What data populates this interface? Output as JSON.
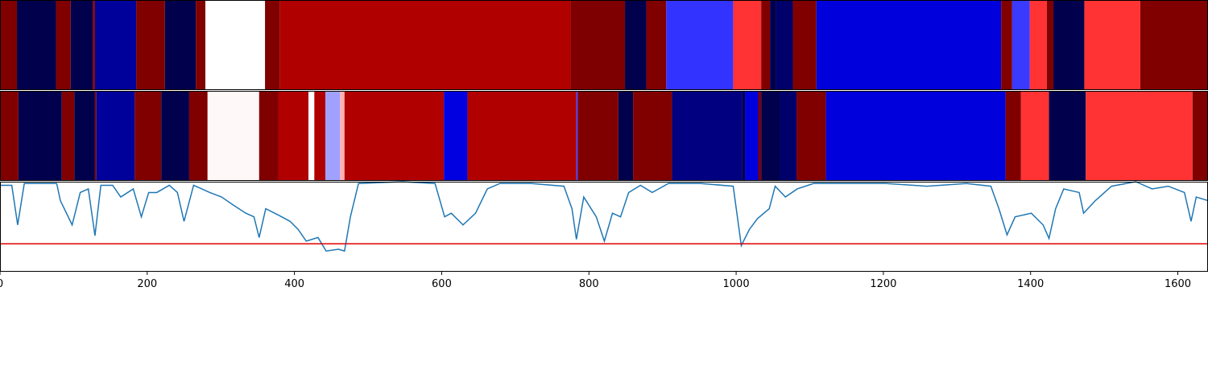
{
  "chart_data": [
    {
      "type": "segments",
      "edges": [
        0,
        23,
        76,
        96,
        126,
        129,
        185,
        224,
        266,
        279,
        360,
        380,
        775,
        849,
        878,
        905,
        996,
        1034,
        1046,
        1054,
        1077,
        1109,
        1360,
        1375,
        1399,
        1422,
        1431,
        1473,
        1549,
        1641
      ],
      "colors": [
        "#800000",
        "#00004c",
        "#800000",
        "#00004c",
        "#800000",
        "#00009a",
        "#800000",
        "#00004c",
        "#800000",
        "#ffffff",
        "#800000",
        "#b00000",
        "#7f0000",
        "#00004c",
        "#800000",
        "#3333ff",
        "#ff3333",
        "#800000",
        "#00004c",
        "#00006a",
        "#800000",
        "#0000dd",
        "#800000",
        "#3a3aff",
        "#ff3333",
        "#800000",
        "#00004c",
        "#ff3333",
        "#800000"
      ],
      "xlim": [
        0,
        1641
      ]
    },
    {
      "type": "segments",
      "edges": [
        0,
        25,
        84,
        101,
        129,
        131,
        183,
        219,
        257,
        282,
        352,
        378,
        419,
        427,
        442,
        462,
        468,
        603,
        635,
        783,
        785,
        840,
        860,
        913,
        1008,
        1012,
        1030,
        1034,
        1059,
        1082,
        1122,
        1366,
        1387,
        1425,
        1475,
        1620,
        1641
      ],
      "colors": [
        "#800000",
        "#00004c",
        "#800000",
        "#00004c",
        "#800000",
        "#00009a",
        "#800000",
        "#00004c",
        "#800000",
        "#fff8f8",
        "#800000",
        "#b00000",
        "#ffffff",
        "#b00000",
        "#a0a0ff",
        "#ffb0b0",
        "#b00000",
        "#0000e0",
        "#b00000",
        "#4040ff",
        "#800000",
        "#00004c",
        "#800000",
        "#000080",
        "#00004c",
        "#0000dd",
        "#800000",
        "#00004c",
        "#00006a",
        "#800000",
        "#0000dd",
        "#800000",
        "#ff3333",
        "#00004c",
        "#ff3333",
        "#800000"
      ],
      "xlim": [
        0,
        1641
      ]
    },
    {
      "type": "line",
      "x": [
        0,
        16,
        24,
        33,
        77,
        82,
        98,
        109,
        120,
        129,
        137,
        153,
        164,
        181,
        192,
        202,
        213,
        230,
        241,
        250,
        263,
        285,
        301,
        317,
        334,
        345,
        352,
        361,
        378,
        394,
        405,
        416,
        432,
        443,
        460,
        468,
        476,
        487,
        547,
        591,
        604,
        613,
        629,
        646,
        662,
        679,
        722,
        766,
        777,
        783,
        793,
        810,
        821,
        832,
        843,
        854,
        870,
        886,
        908,
        952,
        996,
        1007,
        1018,
        1029,
        1045,
        1053,
        1067,
        1083,
        1105,
        1204,
        1259,
        1313,
        1346,
        1357,
        1368,
        1379,
        1401,
        1417,
        1425,
        1434,
        1445,
        1466,
        1472,
        1488,
        1510,
        1543,
        1565,
        1587,
        1609,
        1618,
        1625,
        1641
      ],
      "values": [
        0.96,
        0.96,
        0.52,
        0.98,
        0.98,
        0.79,
        0.52,
        0.88,
        0.92,
        0.4,
        0.96,
        0.96,
        0.83,
        0.92,
        0.61,
        0.88,
        0.88,
        0.96,
        0.88,
        0.56,
        0.96,
        0.88,
        0.83,
        0.74,
        0.65,
        0.61,
        0.38,
        0.7,
        0.63,
        0.56,
        0.47,
        0.34,
        0.38,
        0.23,
        0.25,
        0.23,
        0.61,
        0.98,
        1.0,
        0.98,
        0.61,
        0.65,
        0.52,
        0.65,
        0.92,
        0.98,
        0.98,
        0.95,
        0.7,
        0.36,
        0.83,
        0.61,
        0.34,
        0.65,
        0.61,
        0.88,
        0.96,
        0.88,
        0.98,
        0.98,
        0.95,
        0.29,
        0.47,
        0.59,
        0.7,
        0.95,
        0.83,
        0.92,
        0.98,
        0.98,
        0.95,
        0.98,
        0.95,
        0.7,
        0.41,
        0.61,
        0.65,
        0.52,
        0.37,
        0.7,
        0.92,
        0.88,
        0.65,
        0.79,
        0.95,
        1.0,
        0.92,
        0.95,
        0.88,
        0.56,
        0.83,
        0.79
      ],
      "color": "#1f77b4",
      "threshold": 0.31,
      "threshold_color": "#e00000",
      "xlim": [
        0,
        1641
      ],
      "xticks": [
        0,
        200,
        400,
        600,
        800,
        1000,
        1200,
        1400,
        1600
      ],
      "ylim": [
        0,
        1
      ]
    }
  ]
}
